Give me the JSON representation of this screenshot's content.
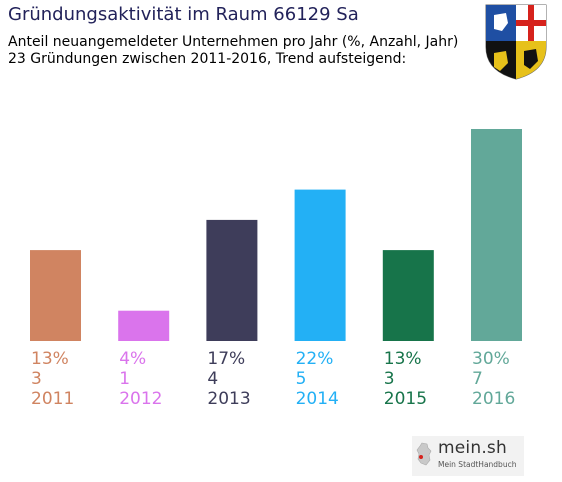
{
  "header": {
    "title": "Gründungsaktivität im Raum 66129 Sa",
    "subtitle_line1": "Anteil neuangemeldeter Unternehmen pro Jahr (%, Anzahl, Jahr)",
    "subtitle_line2": "23 Gründungen zwischen 2011-2016, Trend aufsteigend:"
  },
  "branding": {
    "site": "mein.sh",
    "tagline": "Mein StadtHandbuch"
  },
  "chart_data": {
    "type": "bar",
    "categories": [
      "2011",
      "2012",
      "2013",
      "2014",
      "2015",
      "2016"
    ],
    "values": [
      3,
      1,
      4,
      5,
      3,
      7
    ],
    "percent_labels": [
      "13%",
      "4%",
      "17%",
      "22%",
      "13%",
      "30%"
    ],
    "colors": [
      "#d08461",
      "#da74ec",
      "#3e3d5a",
      "#23b0f5",
      "#17744a",
      "#62a899"
    ],
    "ylim": [
      0,
      7
    ],
    "grid": false,
    "legend": "none"
  }
}
